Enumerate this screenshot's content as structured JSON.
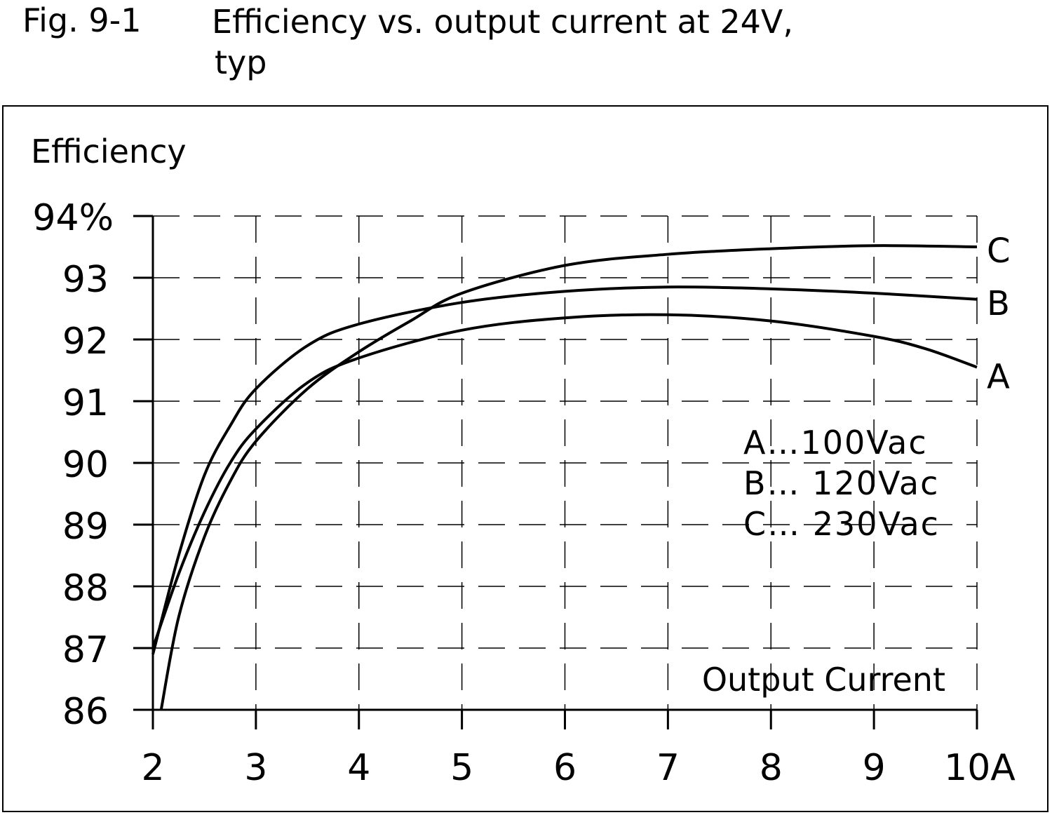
{
  "figure": {
    "number": "Fig. 9-1",
    "title_line1": "Efficiency vs. output current at 24V,",
    "title_line2": "typ"
  },
  "chart_data": {
    "type": "line",
    "title": "Efficiency vs. output current at 24V, typ",
    "xlabel": "Output Current",
    "ylabel": "Efficiency",
    "xlim": [
      2,
      10
    ],
    "ylim": [
      86,
      94
    ],
    "grid": true,
    "x_ticks": [
      "2",
      "3",
      "4",
      "5",
      "6",
      "7",
      "8",
      "9",
      "10A"
    ],
    "y_ticks": [
      "86",
      "87",
      "88",
      "89",
      "90",
      "91",
      "92",
      "93",
      "94%"
    ],
    "legend": {
      "placement": "right-center",
      "entries": [
        "A…100Vac",
        "B… 120Vac",
        "C… 230Vac"
      ]
    },
    "series": [
      {
        "name": "A",
        "label": "A",
        "x": [
          2,
          2.25,
          2.5,
          2.75,
          3,
          3.5,
          4,
          5,
          6,
          7,
          8,
          9,
          9.5,
          10
        ],
        "y": [
          87.0,
          88.2,
          89.2,
          90.0,
          90.55,
          91.3,
          91.7,
          92.15,
          92.35,
          92.4,
          92.3,
          92.05,
          91.85,
          91.55
        ]
      },
      {
        "name": "B",
        "label": "B",
        "x": [
          2,
          2.25,
          2.5,
          2.75,
          3,
          3.5,
          4,
          5,
          6,
          7,
          8,
          9,
          10
        ],
        "y": [
          86.9,
          88.5,
          89.8,
          90.6,
          91.2,
          91.9,
          92.25,
          92.6,
          92.78,
          92.85,
          92.82,
          92.75,
          92.65
        ]
      },
      {
        "name": "C",
        "label": "C",
        "x": [
          2.08,
          2.25,
          2.5,
          2.75,
          3,
          3.5,
          4,
          4.5,
          5,
          6,
          7,
          8,
          9,
          10
        ],
        "y": [
          86.0,
          87.5,
          88.8,
          89.7,
          90.35,
          91.2,
          91.8,
          92.3,
          92.75,
          93.2,
          93.38,
          93.47,
          93.52,
          93.5
        ]
      }
    ]
  }
}
